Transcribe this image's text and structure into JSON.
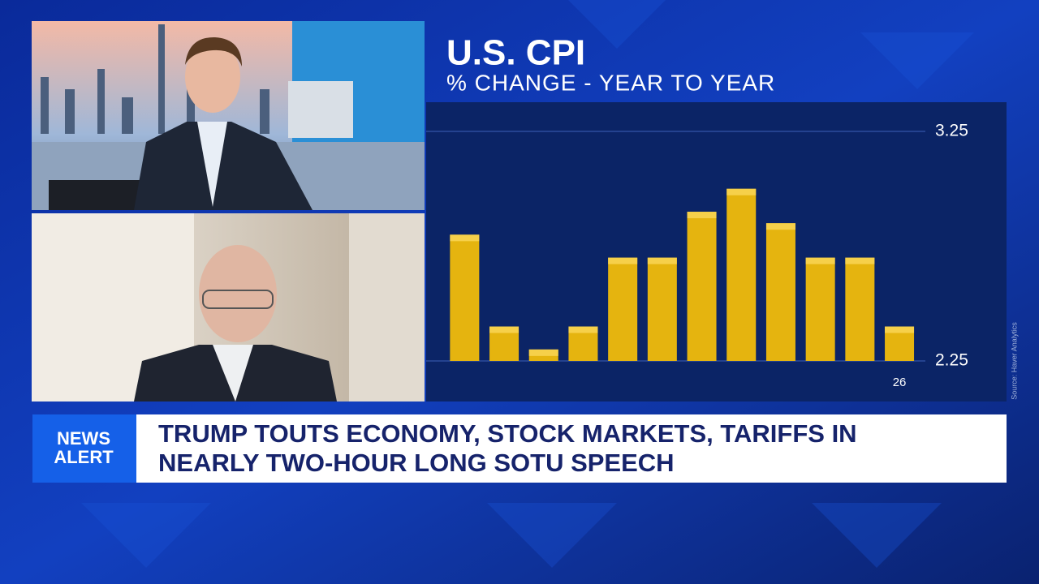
{
  "chart_data": {
    "type": "bar",
    "title": "U.S. CPI",
    "subtitle": "% CHANGE - YEAR TO YEAR",
    "categories": [
      null,
      null,
      null,
      null,
      null,
      null,
      null,
      null,
      null,
      null,
      null,
      "26"
    ],
    "values": [
      2.8,
      2.4,
      2.3,
      2.4,
      2.7,
      2.7,
      2.9,
      3.0,
      2.85,
      2.7,
      2.7,
      2.4
    ],
    "color": "#e5b40f",
    "ylim": [
      2.25,
      3.25
    ],
    "yticks": [
      2.25,
      3.25
    ],
    "grid": true,
    "source": "Source: Haver Analytics"
  },
  "news_alert": {
    "label": [
      "NEWS",
      "ALERT"
    ],
    "headline": [
      "TRUMP TOUTS ECONOMY, STOCK MARKETS, TARIFFS IN",
      "NEARLY TWO-HOUR LONG SOTU SPEECH"
    ]
  }
}
